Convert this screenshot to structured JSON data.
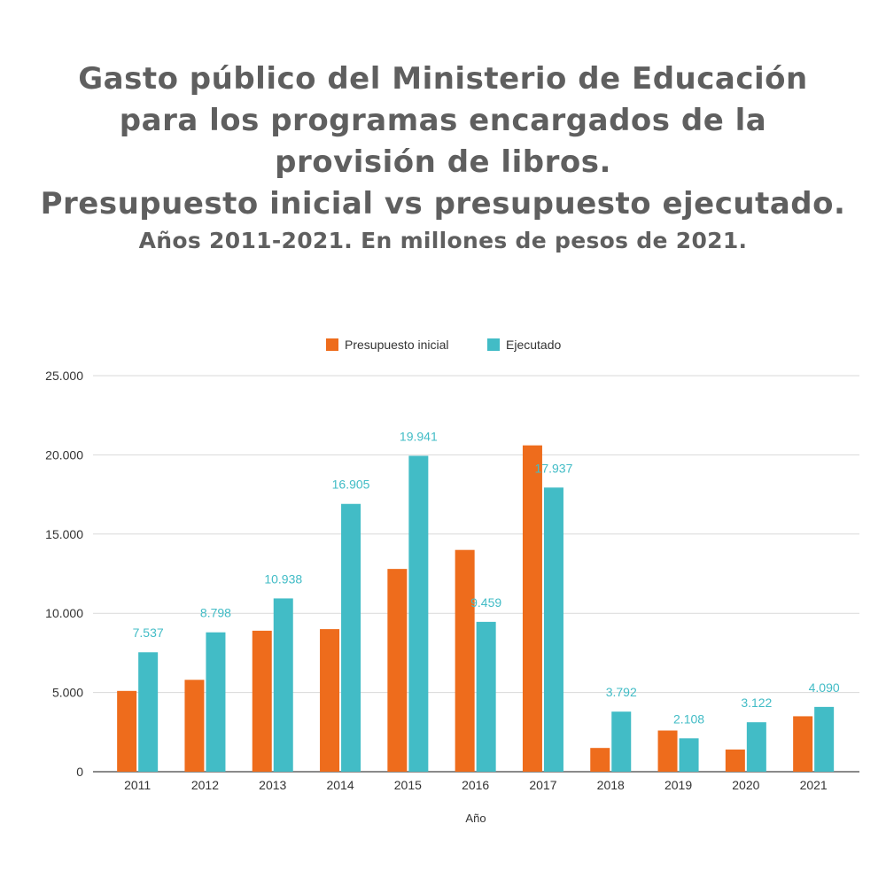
{
  "title": {
    "lines": [
      "Gasto público del Ministerio de Educación",
      "para los programas encargados de la",
      "provisión de libros.",
      "Presupuesto inicial vs presupuesto ejecutado."
    ],
    "subtitle": "Años 2011-2021. En millones de pesos de 2021."
  },
  "colors": {
    "presupuesto_inicial": "#ee6c1c",
    "ejecutado": "#42bcc6",
    "data_label": "#42bcc6",
    "gridline": "#d9d9d9",
    "text": "#333333",
    "title": "#5f5f5f"
  },
  "chart_data": {
    "type": "bar",
    "categories": [
      "2011",
      "2012",
      "2013",
      "2014",
      "2015",
      "2016",
      "2017",
      "2018",
      "2019",
      "2020",
      "2021"
    ],
    "series": [
      {
        "name": "Presupuesto inicial",
        "values": [
          5100,
          5800,
          8900,
          9000,
          12800,
          14000,
          20600,
          1500,
          2600,
          1400,
          3500
        ]
      },
      {
        "name": "Ejecutado",
        "values": [
          7537,
          8798,
          10938,
          16905,
          19941,
          9459,
          17937,
          3792,
          2108,
          3122,
          4090
        ],
        "data_labels": [
          "7.537",
          "8.798",
          "10.938",
          "16.905",
          "19.941",
          "9.459",
          "17.937",
          "3.792",
          "2.108",
          "3.122",
          "4.090"
        ]
      }
    ],
    "xlabel": "Año",
    "ylabel": "",
    "ylim": [
      0,
      25000
    ],
    "yticks": [
      0,
      5000,
      10000,
      15000,
      20000,
      25000
    ],
    "ytick_labels": [
      "0",
      "5.000",
      "10.000",
      "15.000",
      "20.000",
      "25.000"
    ],
    "grid": true,
    "legend_position": "top-center"
  }
}
